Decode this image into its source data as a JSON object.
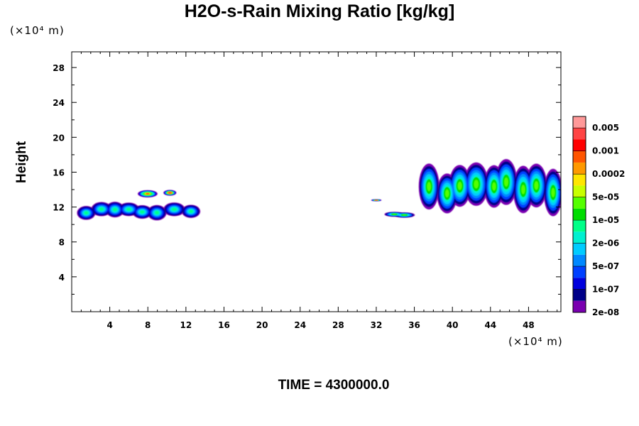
{
  "chart_data": {
    "type": "heatmap",
    "title": "H2O-s-Rain Mixing Ratio [kg/kg]",
    "xlabel": "",
    "ylabel": "Height",
    "x_unit": "(×10⁴ m)",
    "y_unit": "(×10⁴ m)",
    "xlim": [
      0,
      51.4
    ],
    "ylim": [
      0,
      29.8
    ],
    "xticks": [
      4,
      8,
      12,
      16,
      20,
      24,
      28,
      32,
      36,
      40,
      44,
      48
    ],
    "yticks": [
      4,
      8,
      12,
      16,
      20,
      24,
      28
    ],
    "grid": false,
    "colorbar": {
      "placement": "right",
      "labels": [
        "0.005",
        "0.001",
        "0.0002",
        "5e-05",
        "1e-05",
        "2e-06",
        "5e-07",
        "1e-07",
        "2e-08"
      ],
      "colors": [
        "#ff9999",
        "#ff4444",
        "#ff0000",
        "#ff5500",
        "#ff9900",
        "#ffe600",
        "#c8ff00",
        "#55ff00",
        "#00dd00",
        "#00ff88",
        "#00f0d0",
        "#00ccff",
        "#0088ff",
        "#0040ff",
        "#0000dd",
        "#000088",
        "#7a00b0"
      ]
    },
    "regions": [
      {
        "x": [
          0.5,
          13.2
        ],
        "y": [
          10.8,
          12.4
        ],
        "max_level": "5e-05"
      },
      {
        "x": [
          7.5,
          8.9
        ],
        "y": [
          13.2,
          14.1
        ],
        "max_level": "5e-07"
      },
      {
        "x": [
          9.9,
          10.9
        ],
        "y": [
          13.4,
          14.0
        ],
        "max_level": "1e-07"
      },
      {
        "x": [
          31.5,
          32.4
        ],
        "y": [
          12.7,
          12.9
        ],
        "max_level": "1e-07"
      },
      {
        "x": [
          33.0,
          35.8
        ],
        "y": [
          10.9,
          11.5
        ],
        "max_level": "1e-05"
      },
      {
        "x": [
          37.0,
          51.4
        ],
        "y": [
          12.0,
          16.9
        ],
        "max_level": "1e-05"
      }
    ]
  },
  "footer": "TIME = 4300000.0"
}
